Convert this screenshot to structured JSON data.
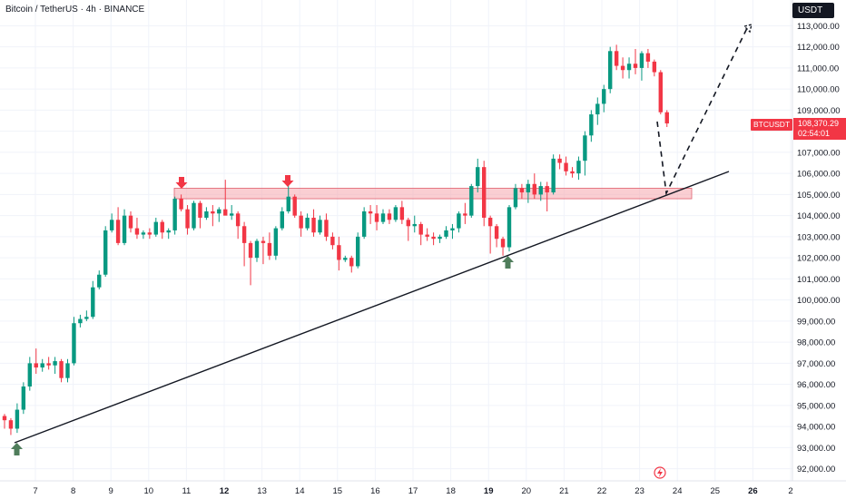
{
  "header": {
    "symbol_title": "Bitcoin / TetherUS · 4h · BINANCE",
    "currency": "USDT"
  },
  "last_price": {
    "symbol": "BTCUSDT",
    "price": "108,370.29",
    "countdown": "02:54:01"
  },
  "chart_data": {
    "type": "candlestick",
    "title": "Bitcoin / TetherUS · 4h · BINANCE",
    "y_axis_label": "USDT",
    "y_range": [
      91800,
      113900
    ],
    "y_ticks": [
      "113,000.00",
      "112,000.00",
      "111,000.00",
      "110,000.00",
      "109,000.00",
      "108,000.00",
      "107,000.00",
      "106,000.00",
      "105,000.00",
      "104,000.00",
      "103,000.00",
      "102,000.00",
      "101,000.00",
      "100,000.00",
      "99,000.00",
      "98,000.00",
      "97,000.00",
      "96,000.00",
      "95,000.00",
      "94,000.00",
      "93,000.00",
      "92,000.00"
    ],
    "x_ticks": [
      {
        "label": "7",
        "bold": false
      },
      {
        "label": "8",
        "bold": false
      },
      {
        "label": "9",
        "bold": false
      },
      {
        "label": "10",
        "bold": false
      },
      {
        "label": "11",
        "bold": false
      },
      {
        "label": "12",
        "bold": true
      },
      {
        "label": "13",
        "bold": false
      },
      {
        "label": "14",
        "bold": false
      },
      {
        "label": "15",
        "bold": false
      },
      {
        "label": "16",
        "bold": false
      },
      {
        "label": "17",
        "bold": false
      },
      {
        "label": "18",
        "bold": false
      },
      {
        "label": "19",
        "bold": true
      },
      {
        "label": "20",
        "bold": false
      },
      {
        "label": "21",
        "bold": false
      },
      {
        "label": "22",
        "bold": false
      },
      {
        "label": "23",
        "bold": false
      },
      {
        "label": "24",
        "bold": false
      },
      {
        "label": "25",
        "bold": false
      },
      {
        "label": "26",
        "bold": true
      },
      {
        "label": "2",
        "bold": false
      }
    ],
    "candles": [
      [
        94500,
        94600,
        93900,
        94300
      ],
      [
        94300,
        94400,
        93600,
        93900
      ],
      [
        93900,
        95100,
        93700,
        94800
      ],
      [
        94800,
        96100,
        94600,
        95900
      ],
      [
        95900,
        97300,
        95700,
        97000
      ],
      [
        97000,
        97700,
        96500,
        96800
      ],
      [
        96800,
        97200,
        96600,
        97000
      ],
      [
        97000,
        97300,
        96700,
        96900
      ],
      [
        96900,
        97300,
        96500,
        97100
      ],
      [
        97100,
        97200,
        96100,
        96300
      ],
      [
        96300,
        97200,
        96100,
        97000
      ],
      [
        97000,
        99200,
        96900,
        98900
      ],
      [
        98900,
        99300,
        98700,
        99100
      ],
      [
        99100,
        99500,
        99000,
        99200
      ],
      [
        99200,
        100900,
        99100,
        100600
      ],
      [
        100600,
        101400,
        100500,
        101200
      ],
      [
        101200,
        103500,
        101100,
        103300
      ],
      [
        103300,
        104100,
        103200,
        103800
      ],
      [
        103800,
        104400,
        102600,
        102700
      ],
      [
        102700,
        104300,
        102600,
        104000
      ],
      [
        104000,
        104200,
        103200,
        103400
      ],
      [
        103400,
        103900,
        102900,
        103100
      ],
      [
        103100,
        103300,
        102900,
        103200
      ],
      [
        103200,
        103400,
        102900,
        103100
      ],
      [
        103100,
        103900,
        103000,
        103700
      ],
      [
        103700,
        103800,
        102900,
        103200
      ],
      [
        103200,
        103400,
        102900,
        103300
      ],
      [
        103300,
        104900,
        103100,
        104800
      ],
      [
        104800,
        105000,
        104200,
        104300
      ],
      [
        104300,
        104500,
        103100,
        103400
      ],
      [
        103400,
        104700,
        103300,
        104600
      ],
      [
        104600,
        104700,
        103400,
        103900
      ],
      [
        103900,
        104400,
        103800,
        104200
      ],
      [
        104200,
        104500,
        103500,
        104100
      ],
      [
        104100,
        104400,
        103700,
        104300
      ],
      [
        104300,
        105700,
        104200,
        104000
      ],
      [
        104000,
        104500,
        103800,
        104100
      ],
      [
        104100,
        104200,
        102900,
        103500
      ],
      [
        103500,
        103700,
        101600,
        102700
      ],
      [
        102700,
        102800,
        100700,
        102000
      ],
      [
        102000,
        102900,
        101800,
        102800
      ],
      [
        102800,
        103000,
        101700,
        102700
      ],
      [
        102700,
        103200,
        101900,
        102100
      ],
      [
        102100,
        103500,
        101900,
        103400
      ],
      [
        103400,
        104400,
        103300,
        104200
      ],
      [
        104200,
        105500,
        104100,
        104900
      ],
      [
        104900,
        105000,
        103900,
        104000
      ],
      [
        104000,
        104200,
        103000,
        103400
      ],
      [
        103400,
        104100,
        103300,
        103900
      ],
      [
        103900,
        104300,
        103000,
        103200
      ],
      [
        103200,
        104000,
        103100,
        103800
      ],
      [
        103800,
        104100,
        102800,
        103000
      ],
      [
        103000,
        103200,
        102400,
        102600
      ],
      [
        102600,
        103000,
        101400,
        101900
      ],
      [
        101900,
        102100,
        101800,
        102000
      ],
      [
        102000,
        102100,
        101300,
        101600
      ],
      [
        101600,
        103200,
        101500,
        103000
      ],
      [
        103000,
        104400,
        102900,
        104200
      ],
      [
        104200,
        104500,
        103600,
        104100
      ],
      [
        104100,
        104500,
        103300,
        103700
      ],
      [
        103700,
        104300,
        103600,
        104100
      ],
      [
        104100,
        104300,
        103600,
        103800
      ],
      [
        103800,
        104500,
        103700,
        104400
      ],
      [
        104400,
        104700,
        103600,
        103800
      ],
      [
        103800,
        103900,
        102800,
        103500
      ],
      [
        103500,
        104000,
        103200,
        103600
      ],
      [
        103600,
        103700,
        102600,
        103100
      ],
      [
        103100,
        103400,
        102800,
        103000
      ],
      [
        103000,
        103200,
        102600,
        102900
      ],
      [
        102900,
        103100,
        102700,
        103000
      ],
      [
        103000,
        103500,
        102900,
        103300
      ],
      [
        103300,
        103600,
        102900,
        103400
      ],
      [
        103400,
        104200,
        103200,
        104100
      ],
      [
        104100,
        104600,
        103600,
        104000
      ],
      [
        104000,
        105500,
        103900,
        105400
      ],
      [
        105400,
        106700,
        105100,
        106300
      ],
      [
        106300,
        106600,
        103500,
        103900
      ],
      [
        103900,
        104000,
        102200,
        103500
      ],
      [
        103500,
        103600,
        102500,
        102900
      ],
      [
        102900,
        103000,
        102100,
        102500
      ],
      [
        102500,
        104500,
        102300,
        104400
      ],
      [
        104400,
        105500,
        104300,
        105300
      ],
      [
        105300,
        105500,
        104800,
        105100
      ],
      [
        105100,
        105700,
        104600,
        105500
      ],
      [
        105500,
        106000,
        104800,
        105000
      ],
      [
        105000,
        105600,
        104700,
        105400
      ],
      [
        105400,
        105600,
        104200,
        105100
      ],
      [
        105100,
        106900,
        105000,
        106700
      ],
      [
        106700,
        106900,
        106200,
        106500
      ],
      [
        106500,
        106800,
        105900,
        106100
      ],
      [
        106100,
        106300,
        105800,
        106000
      ],
      [
        106000,
        106800,
        105700,
        106600
      ],
      [
        106600,
        108000,
        105900,
        107800
      ],
      [
        107800,
        109000,
        107500,
        108800
      ],
      [
        108800,
        109600,
        108300,
        109300
      ],
      [
        109300,
        110200,
        108900,
        110000
      ],
      [
        110000,
        112000,
        109800,
        111800
      ],
      [
        111800,
        112100,
        110900,
        111100
      ],
      [
        111100,
        111500,
        110500,
        110900
      ],
      [
        110900,
        111500,
        110500,
        111200
      ],
      [
        111200,
        111900,
        110700,
        111000
      ],
      [
        111000,
        111800,
        110400,
        111700
      ],
      [
        111700,
        111900,
        111000,
        111300
      ],
      [
        111300,
        111400,
        110600,
        110800
      ],
      [
        110800,
        110900,
        108800,
        108900
      ],
      [
        108900,
        109000,
        108200,
        108370
      ]
    ],
    "annotations": {
      "resistance_zone": [
        104800,
        105300
      ],
      "trendline": "ascending support line",
      "down_arrows": 2,
      "up_arrows": 2,
      "projection": "dashed path down to support then up toward 113,000"
    }
  }
}
